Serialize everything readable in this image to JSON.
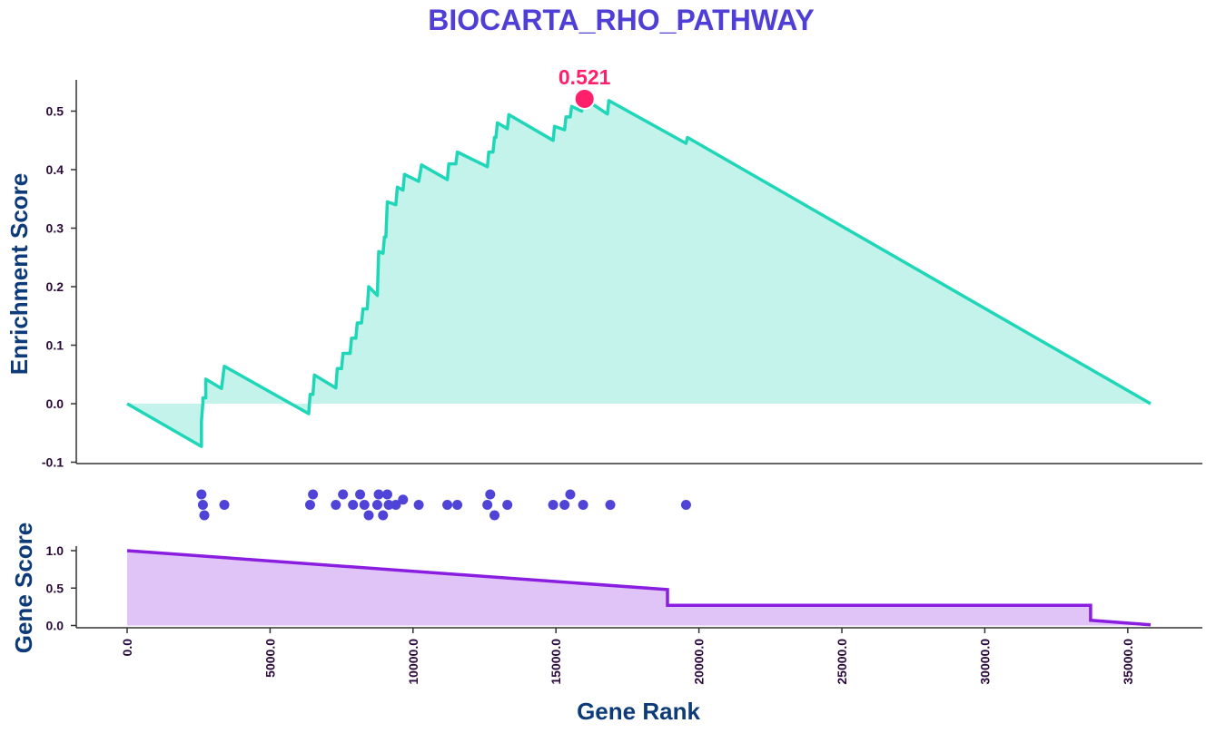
{
  "colors": {
    "title": "#4f3fd6",
    "es_line": "#1fd6b8",
    "es_fill": "#c4f3ec",
    "peak": "#ff1f6b",
    "hits": "#5044d8",
    "gene_line": "#8a1ee0",
    "gene_fill": "#e0c3f7",
    "axis_title": "#0d3b7a",
    "tick": "#2a0a3a"
  },
  "chart_data": [
    {
      "type": "area",
      "title": "BIOCARTA_RHO_PATHWAY",
      "xlabel": "",
      "ylabel": "Enrichment Score",
      "ylim": [
        -0.1,
        0.55
      ],
      "yticks": [
        "0.5",
        "0.4",
        "0.3",
        "0.2",
        "0.1",
        "0.0",
        "-0.1"
      ],
      "peak": {
        "x": 16000,
        "y": 0.521,
        "label": "0.521"
      },
      "series": [
        {
          "x": [
            0,
            2600,
            2600,
            2650,
            2650,
            2750,
            2750,
            3300,
            3400,
            6350,
            6400,
            6500,
            6550,
            7300,
            7350,
            7500,
            7550,
            7800,
            7850,
            8000,
            8050,
            8200,
            8250,
            8400,
            8450,
            8750,
            8800,
            8950,
            9000,
            9050,
            9100,
            9400,
            9450,
            9650,
            9700,
            10200,
            10300,
            11200,
            11250,
            11500,
            11550,
            12600,
            12650,
            12800,
            12850,
            12900,
            12950,
            13300,
            13350,
            14900,
            14950,
            15300,
            15350,
            15500,
            15550,
            15900,
            15950,
            16000,
            16800,
            16850,
            19550,
            19600,
            35800
          ],
          "y": [
            0.0,
            -0.073,
            -0.03,
            0.002,
            0.01,
            0.01,
            0.042,
            0.026,
            0.064,
            -0.017,
            0.016,
            0.016,
            0.049,
            0.027,
            0.06,
            0.06,
            0.086,
            0.086,
            0.112,
            0.112,
            0.138,
            0.138,
            0.162,
            0.162,
            0.2,
            0.185,
            0.26,
            0.257,
            0.285,
            0.285,
            0.345,
            0.34,
            0.37,
            0.365,
            0.392,
            0.38,
            0.408,
            0.383,
            0.41,
            0.41,
            0.43,
            0.405,
            0.43,
            0.43,
            0.455,
            0.455,
            0.48,
            0.47,
            0.494,
            0.45,
            0.474,
            0.468,
            0.49,
            0.49,
            0.508,
            0.5,
            0.521,
            0.521,
            0.495,
            0.518,
            0.445,
            0.455,
            0.0
          ]
        }
      ]
    },
    {
      "type": "scatter",
      "hits": [
        [
          2600,
          2
        ],
        [
          2650,
          1
        ],
        [
          2700,
          0
        ],
        [
          3400,
          1
        ],
        [
          6400,
          1
        ],
        [
          6500,
          2
        ],
        [
          7300,
          1
        ],
        [
          7550,
          2
        ],
        [
          7900,
          1
        ],
        [
          8150,
          2
        ],
        [
          8300,
          1
        ],
        [
          8450,
          0
        ],
        [
          8750,
          1
        ],
        [
          8800,
          2
        ],
        [
          8950,
          0
        ],
        [
          9100,
          2
        ],
        [
          9150,
          1
        ],
        [
          9400,
          1
        ],
        [
          9650,
          1.5
        ],
        [
          10200,
          1
        ],
        [
          11200,
          1
        ],
        [
          11550,
          1
        ],
        [
          12600,
          1
        ],
        [
          12700,
          2
        ],
        [
          12850,
          0
        ],
        [
          13300,
          1
        ],
        [
          14900,
          1
        ],
        [
          15300,
          1
        ],
        [
          15500,
          2
        ],
        [
          15950,
          1
        ],
        [
          16900,
          1
        ],
        [
          19550,
          1
        ]
      ]
    },
    {
      "type": "area",
      "xlabel": "Gene Rank",
      "ylabel": "Gene Score",
      "ylim": [
        0,
        1.05
      ],
      "yticks": [
        "1.0",
        "0.5",
        "0.0"
      ],
      "xticks": [
        "0.0",
        "5000.0",
        "10000.0",
        "15000.0",
        "20000.0",
        "25000.0",
        "30000.0",
        "35000.0"
      ],
      "series": [
        {
          "x": [
            0,
            18900,
            18900,
            33700,
            33700,
            35800
          ],
          "y": [
            1.0,
            0.48,
            0.27,
            0.27,
            0.07,
            0.01
          ]
        }
      ]
    }
  ]
}
